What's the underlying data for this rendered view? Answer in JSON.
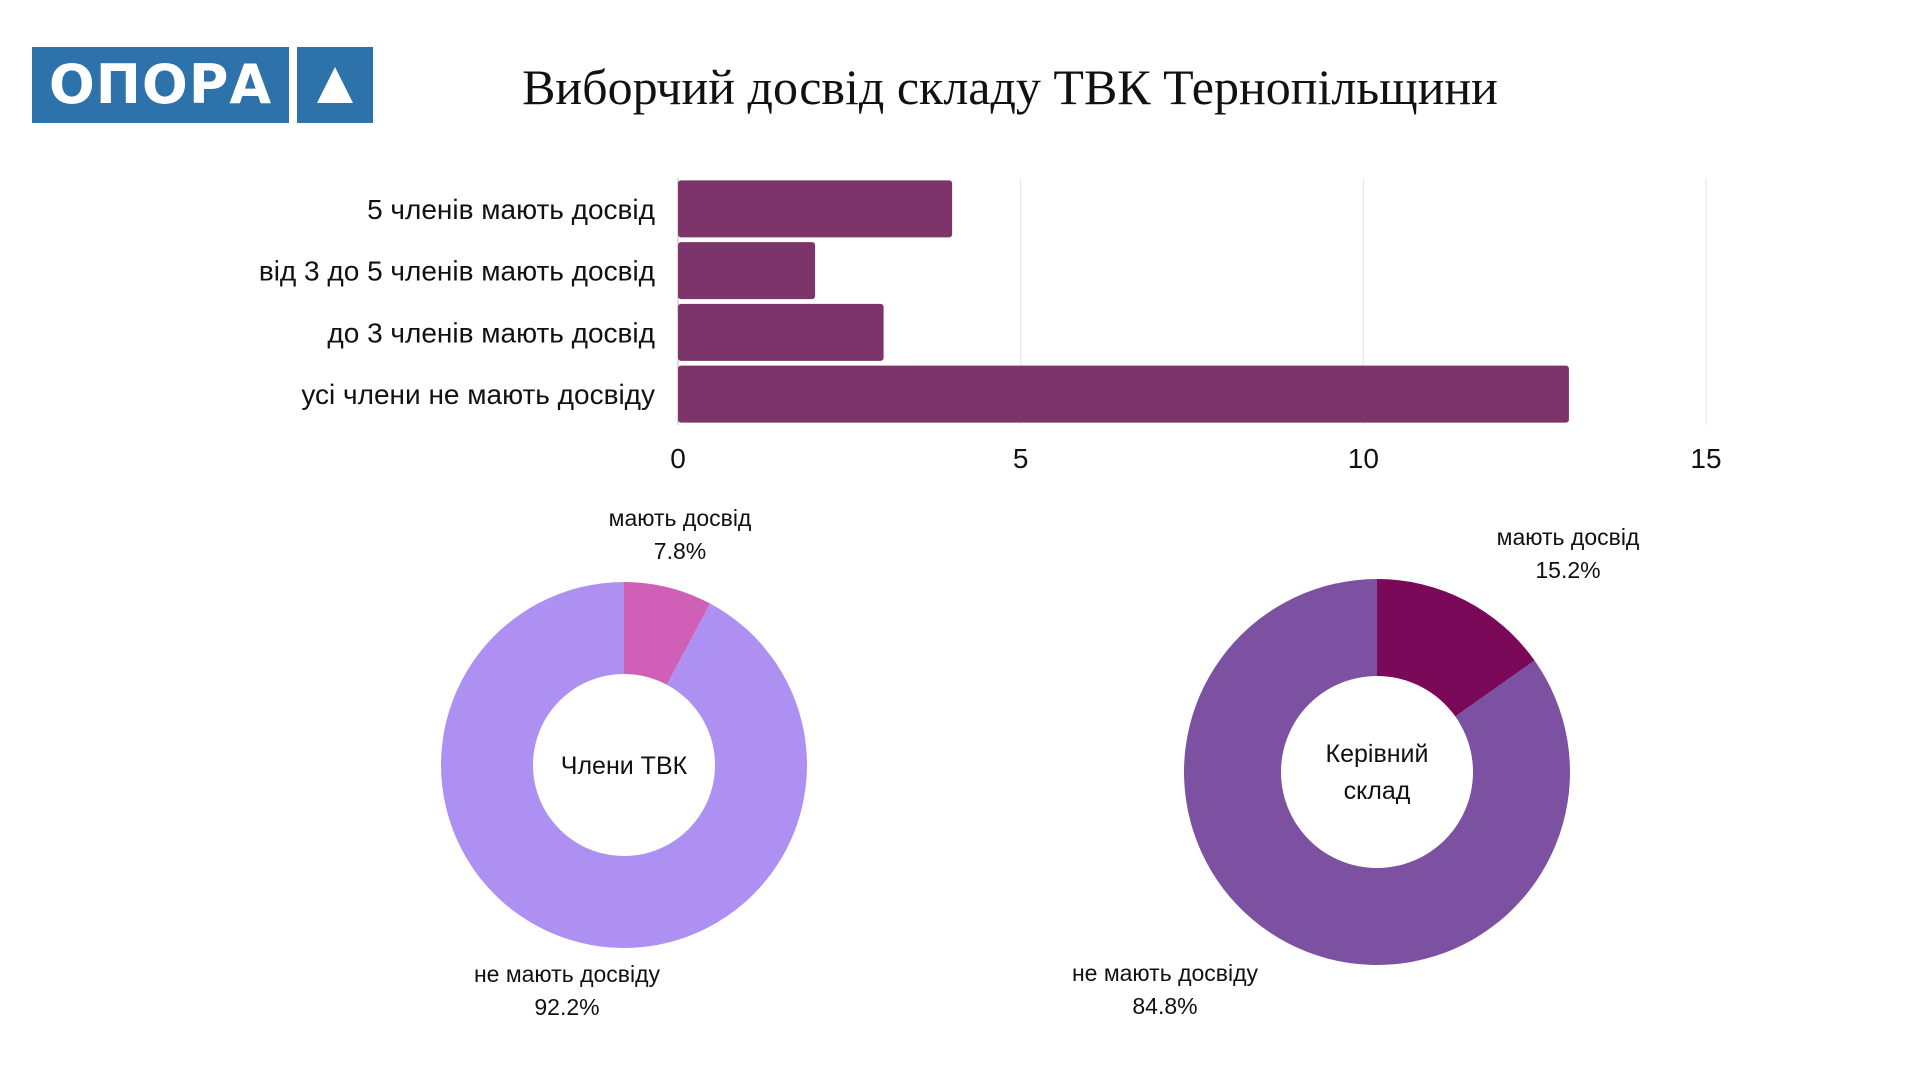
{
  "logo": {
    "text": "ОПОРА"
  },
  "title": "Виборчий досвід складу ТВК Тернопільщини",
  "chart_data": [
    {
      "type": "bar",
      "orientation": "horizontal",
      "categories": [
        "5 членів мають досвід",
        "від 3 до 5 членів мають досвід",
        "до 3 членів мають досвід",
        "усі члени не мають досвіду"
      ],
      "values": [
        4,
        2,
        3,
        13
      ],
      "xlim": [
        0,
        15
      ],
      "xticks": [
        "0",
        "5",
        "10",
        "15"
      ],
      "grid": true,
      "color": "#7d346a"
    },
    {
      "type": "pie",
      "style": "donut",
      "center_label": "Члени ТВК",
      "slices": [
        {
          "label": "мають досвід",
          "value": 7.8,
          "value_label": "7.8%",
          "color": "#cf5fb7"
        },
        {
          "label": "не мають досвіду",
          "value": 92.2,
          "value_label": "92.2%",
          "color": "#ae90f2"
        }
      ]
    },
    {
      "type": "pie",
      "style": "donut",
      "center_label": "Керівний склад",
      "center_label_lines": [
        "Керівний",
        "склад"
      ],
      "slices": [
        {
          "label": "мають досвід",
          "value": 15.2,
          "value_label": "15.2%",
          "color": "#7a0959"
        },
        {
          "label": "не мають досвіду",
          "value": 84.8,
          "value_label": "84.8%",
          "color": "#7c51a1"
        }
      ]
    }
  ]
}
